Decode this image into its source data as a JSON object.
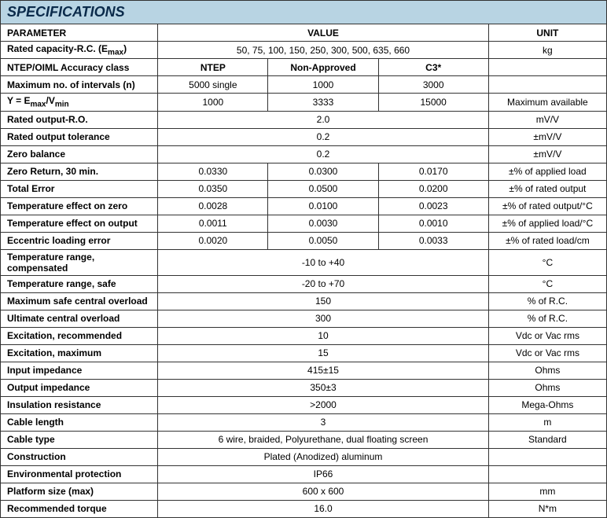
{
  "title": "SPECIFICATIONS",
  "headers": {
    "param": "PARAMETER",
    "value": "VALUE",
    "unit": "UNIT",
    "sub1": "NTEP",
    "sub2": "Non-Approved",
    "sub3": "C3*"
  },
  "rows": [
    {
      "param_html": "Rated capacity-R.C. (E<sub>max</sub>)",
      "span": "50, 75, 100, 150, 250, 300, 500, 635, 660",
      "unit": "kg"
    },
    {
      "param": "NTEP/OIML Accuracy class",
      "is_subheader": true
    },
    {
      "param": "Maximum no. of intervals (n)",
      "v1": "5000 single",
      "v2": "1000",
      "v3": "3000",
      "unit": ""
    },
    {
      "param_html": "Y = E<sub>max</sub>/V<sub>min</sub>",
      "v1": "1000",
      "v2": "3333",
      "v3": "15000",
      "unit": "Maximum available"
    },
    {
      "param": "Rated output-R.O.",
      "span": "2.0",
      "unit": "mV/V"
    },
    {
      "param": "Rated output tolerance",
      "span": "0.2",
      "unit": "±mV/V"
    },
    {
      "param": "Zero balance",
      "span": "0.2",
      "unit": "±mV/V"
    },
    {
      "param": "Zero Return, 30 min.",
      "v1": "0.0330",
      "v2": "0.0300",
      "v3": "0.0170",
      "unit": "±% of applied load"
    },
    {
      "param": "Total Error",
      "v1": "0.0350",
      "v2": "0.0500",
      "v3": "0.0200",
      "unit": "±% of rated output"
    },
    {
      "param": "Temperature effect on zero",
      "v1": "0.0028",
      "v2": "0.0100",
      "v3": "0.0023",
      "unit": "±% of rated output/°C"
    },
    {
      "param": "Temperature effect on output",
      "v1": "0.0011",
      "v2": "0.0030",
      "v3": "0.0010",
      "unit": "±% of applied load/°C"
    },
    {
      "param": "Eccentric loading error",
      "v1": "0.0020",
      "v2": "0.0050",
      "v3": "0.0033",
      "unit": "±% of rated load/cm"
    },
    {
      "param": "Temperature range, compensated",
      "span": "-10 to +40",
      "unit": "°C"
    },
    {
      "param": "Temperature range, safe",
      "span": "-20 to +70",
      "unit": "°C"
    },
    {
      "param": "Maximum safe central overload",
      "span": "150",
      "unit": "% of R.C."
    },
    {
      "param": "Ultimate central overload",
      "span": "300",
      "unit": "% of R.C."
    },
    {
      "param": "Excitation, recommended",
      "span": "10",
      "unit": "Vdc or Vac rms"
    },
    {
      "param": "Excitation, maximum",
      "span": "15",
      "unit": "Vdc or Vac rms"
    },
    {
      "param": "Input impedance",
      "span": "415±15",
      "unit": "Ohms"
    },
    {
      "param": "Output impedance",
      "span": "350±3",
      "unit": "Ohms"
    },
    {
      "param": "Insulation resistance",
      "span": ">2000",
      "unit": "Mega-Ohms"
    },
    {
      "param": "Cable length",
      "span": "3",
      "unit": "m"
    },
    {
      "param": "Cable type",
      "span": "6 wire, braided, Polyurethane, dual floating screen",
      "unit": "Standard"
    },
    {
      "param": "Construction",
      "span": "Plated (Anodized) aluminum",
      "unit": ""
    },
    {
      "param": "Environmental protection",
      "span": "IP66",
      "unit": ""
    },
    {
      "param": "Platform size (max)",
      "span": "600 x 600",
      "unit": "mm"
    },
    {
      "param": "Recommended torque",
      "span": "16.0",
      "unit": "N*m"
    }
  ]
}
